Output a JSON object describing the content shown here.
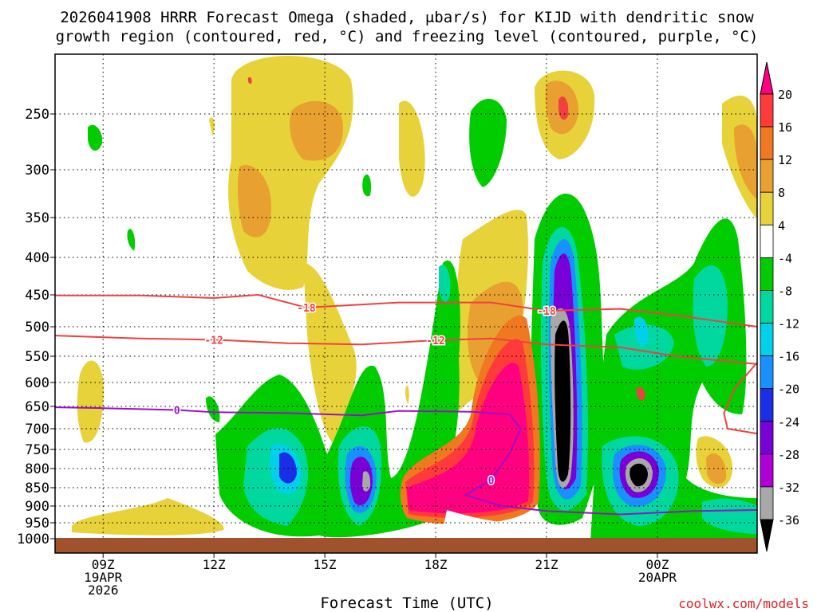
{
  "chart_data": {
    "type": "heatmap",
    "title_lines": [
      "2026041908 HRRR Forecast Omega (shaded, μbar/s) for KIJD with dendritic snow",
      "growth region (contoured, red, °C) and freezing level (contoured, purple, °C)"
    ],
    "xlabel": "Forecast Time (UTC)",
    "credit": "coolwx.com/models",
    "x_range_hours": [
      7.7,
      26.7
    ],
    "y_range_hpa": [
      200,
      1000
    ],
    "x_ticks": [
      {
        "hour": 9,
        "lines": [
          "09Z",
          "19APR",
          "2026"
        ]
      },
      {
        "hour": 12,
        "lines": [
          "12Z"
        ]
      },
      {
        "hour": 15,
        "lines": [
          "15Z"
        ]
      },
      {
        "hour": 18,
        "lines": [
          "18Z"
        ]
      },
      {
        "hour": 21,
        "lines": [
          "21Z"
        ]
      },
      {
        "hour": 24,
        "lines": [
          "00Z",
          "20APR"
        ]
      }
    ],
    "y_ticks": [
      "250",
      "300",
      "350",
      "400",
      "450",
      "500",
      "550",
      "600",
      "650",
      "700",
      "750",
      "800",
      "850",
      "900",
      "950",
      "1000"
    ],
    "colorbar": {
      "labels": [
        "20",
        "16",
        "12",
        "8",
        "4",
        "-4",
        "-8",
        "-12",
        "-16",
        "-20",
        "-24",
        "-28",
        "-32",
        "-36"
      ],
      "colors": [
        "#ff0080",
        "#ff3a3a",
        "#f07820",
        "#e8a030",
        "#e8d23a",
        "#ffffff",
        "#00cc00",
        "#00d8a0",
        "#00d0e8",
        "#1a90ff",
        "#1a2ee8",
        "#7a00d8",
        "#b000d8",
        "#a8a8a8",
        "#000000"
      ]
    },
    "series": [
      {
        "name": "-18 °C isotherm",
        "color": "#f04040",
        "label": "-18",
        "points": [
          [
            7.7,
            451
          ],
          [
            10,
            451
          ],
          [
            12,
            455
          ],
          [
            13.2,
            450
          ],
          [
            14.5,
            470
          ],
          [
            17,
            462
          ],
          [
            19.5,
            462
          ],
          [
            21,
            475
          ],
          [
            23,
            472
          ],
          [
            24.5,
            482
          ],
          [
            26.7,
            500
          ]
        ]
      },
      {
        "name": "-12 °C isotherm",
        "color": "#f04040",
        "label": "-12",
        "points": [
          [
            7.7,
            515
          ],
          [
            10,
            520
          ],
          [
            12,
            522
          ],
          [
            14,
            528
          ],
          [
            16,
            530
          ],
          [
            18,
            523
          ],
          [
            19.5,
            520
          ],
          [
            21,
            530
          ],
          [
            23,
            535
          ],
          [
            24.5,
            550
          ],
          [
            26.7,
            565
          ]
        ]
      },
      {
        "name": "-18 °C contour (right)",
        "color": "#f04040",
        "label": "",
        "points": [
          [
            26.7,
            562
          ],
          [
            26.1,
            612
          ],
          [
            25.8,
            665
          ],
          [
            25.9,
            700
          ],
          [
            26.7,
            712
          ]
        ]
      },
      {
        "name": "0 °C freezing level",
        "color": "#9a10c8",
        "label": "0",
        "points": [
          [
            7.7,
            652
          ],
          [
            9,
            654
          ],
          [
            11,
            658
          ],
          [
            12,
            663
          ],
          [
            14,
            665
          ],
          [
            16,
            670
          ],
          [
            17,
            660
          ],
          [
            19,
            662
          ],
          [
            20,
            668
          ],
          [
            20.3,
            700
          ],
          [
            20,
            760
          ],
          [
            19.5,
            830
          ],
          [
            18.8,
            870
          ],
          [
            19.8,
            900
          ],
          [
            21,
            915
          ],
          [
            22,
            920
          ],
          [
            23,
            925
          ],
          [
            24,
            920
          ],
          [
            25,
            915
          ],
          [
            26.7,
            912
          ]
        ]
      }
    ]
  }
}
